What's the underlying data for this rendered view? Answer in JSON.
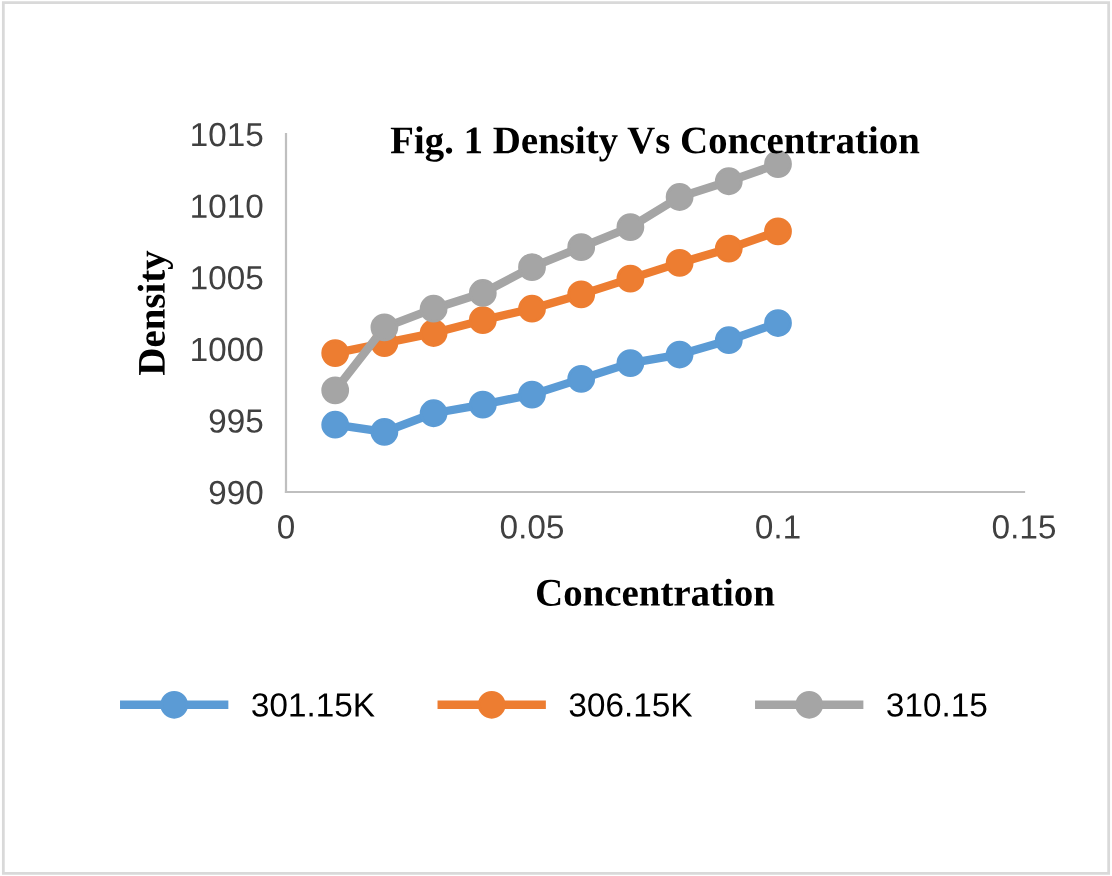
{
  "chart_data": {
    "type": "line",
    "title": "Fig. 1 Density Vs Concentration",
    "xlabel": "Concentration",
    "ylabel": "Density",
    "x": [
      0.01,
      0.02,
      0.03,
      0.04,
      0.05,
      0.06,
      0.07,
      0.08,
      0.09,
      0.1
    ],
    "series": [
      {
        "name": "301.15K",
        "color": "#5b9bd5",
        "values": [
          994.7,
          994.2,
          995.5,
          996.1,
          996.8,
          997.9,
          999.0,
          999.6,
          1000.6,
          1001.8
        ]
      },
      {
        "name": "306.15K",
        "color": "#ed7d31",
        "values": [
          999.7,
          1000.4,
          1001.1,
          1002.0,
          1002.8,
          1003.8,
          1004.9,
          1006.0,
          1007.0,
          1008.2
        ]
      },
      {
        "name": "310.15",
        "color": "#a5a5a5",
        "values": [
          997.1,
          1001.5,
          1002.8,
          1003.9,
          1005.7,
          1007.1,
          1008.5,
          1010.6,
          1011.7,
          1012.9
        ]
      }
    ],
    "xlim": [
      0,
      0.15
    ],
    "xticks": [
      0,
      0.05,
      0.1,
      0.15
    ],
    "ylim": [
      990,
      1015
    ],
    "yticks": [
      990,
      995,
      1000,
      1005,
      1010,
      1015
    ],
    "grid": false,
    "legend": "bottom",
    "marker": "circle",
    "line_style": "solid"
  }
}
